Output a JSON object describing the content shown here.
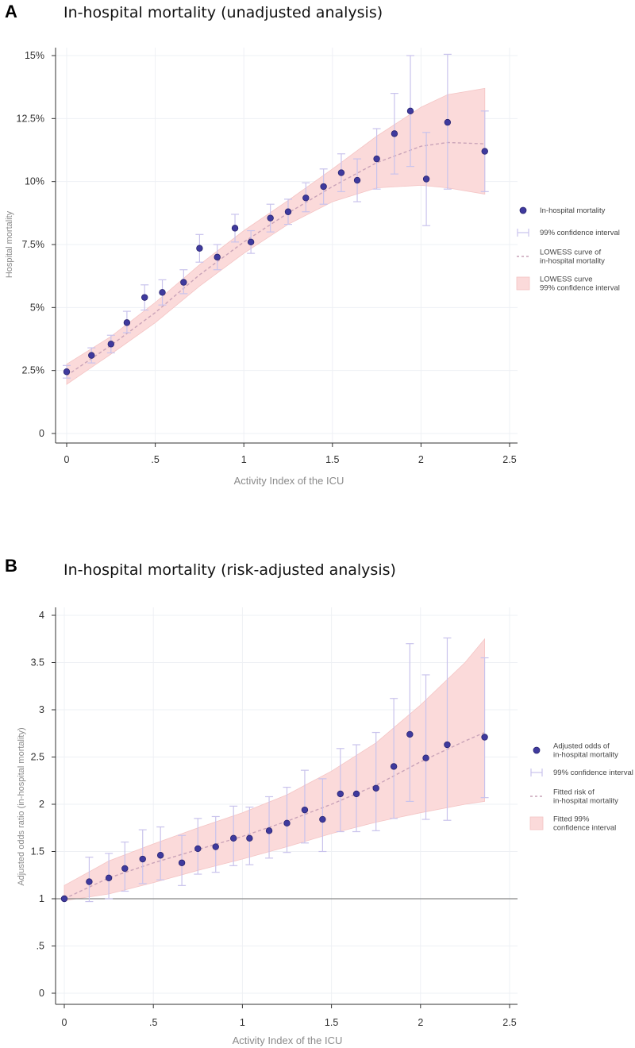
{
  "chart_data": [
    {
      "panel": "A",
      "type": "scatter",
      "title": "In-hospital mortality (unadjusted analysis)",
      "xlabel": "Activity Index of the ICU",
      "ylabel": "Hospital mortality",
      "xlim": [
        0,
        2.5
      ],
      "ylim": [
        0,
        15
      ],
      "xticks": [
        0,
        0.5,
        1,
        1.5,
        2,
        2.5
      ],
      "xtick_labels": [
        "0",
        ".5",
        "1",
        "1.5",
        "2",
        "2.5"
      ],
      "yticks": [
        0,
        2.5,
        5,
        7.5,
        10,
        12.5,
        15
      ],
      "ytick_labels": [
        "0",
        "2.5%",
        "5%",
        "7.5%",
        "10%",
        "12.5%",
        "15%"
      ],
      "reference_line": null,
      "points": [
        {
          "x": 0.0,
          "y": 2.45,
          "lo": 2.2,
          "hi": 2.7
        },
        {
          "x": 0.14,
          "y": 3.1,
          "lo": 2.8,
          "hi": 3.4
        },
        {
          "x": 0.25,
          "y": 3.55,
          "lo": 3.2,
          "hi": 3.9
        },
        {
          "x": 0.34,
          "y": 4.4,
          "lo": 4.0,
          "hi": 4.85
        },
        {
          "x": 0.44,
          "y": 5.4,
          "lo": 4.9,
          "hi": 5.9
        },
        {
          "x": 0.54,
          "y": 5.6,
          "lo": 5.1,
          "hi": 6.1
        },
        {
          "x": 0.66,
          "y": 6.0,
          "lo": 5.55,
          "hi": 6.5
        },
        {
          "x": 0.75,
          "y": 7.35,
          "lo": 6.8,
          "hi": 7.9
        },
        {
          "x": 0.85,
          "y": 7.0,
          "lo": 6.5,
          "hi": 7.5
        },
        {
          "x": 0.95,
          "y": 8.15,
          "lo": 7.6,
          "hi": 8.7
        },
        {
          "x": 1.04,
          "y": 7.6,
          "lo": 7.15,
          "hi": 8.05
        },
        {
          "x": 1.15,
          "y": 8.55,
          "lo": 8.0,
          "hi": 9.1
        },
        {
          "x": 1.25,
          "y": 8.8,
          "lo": 8.3,
          "hi": 9.3
        },
        {
          "x": 1.35,
          "y": 9.35,
          "lo": 8.8,
          "hi": 9.95
        },
        {
          "x": 1.45,
          "y": 9.8,
          "lo": 9.1,
          "hi": 10.5
        },
        {
          "x": 1.55,
          "y": 10.35,
          "lo": 9.6,
          "hi": 11.1
        },
        {
          "x": 1.64,
          "y": 10.05,
          "lo": 9.2,
          "hi": 10.9
        },
        {
          "x": 1.75,
          "y": 10.9,
          "lo": 9.7,
          "hi": 12.1
        },
        {
          "x": 1.85,
          "y": 11.9,
          "lo": 10.3,
          "hi": 13.5
        },
        {
          "x": 1.94,
          "y": 12.8,
          "lo": 10.6,
          "hi": 15.0
        },
        {
          "x": 2.03,
          "y": 10.1,
          "lo": 8.25,
          "hi": 11.95
        },
        {
          "x": 2.15,
          "y": 12.35,
          "lo": 9.7,
          "hi": 15.05
        },
        {
          "x": 2.36,
          "y": 11.2,
          "lo": 9.6,
          "hi": 12.8
        }
      ],
      "fit": {
        "x": [
          0,
          0.25,
          0.5,
          0.75,
          1.0,
          1.25,
          1.5,
          1.75,
          2.0,
          2.15,
          2.36
        ],
        "y": [
          2.3,
          3.5,
          4.8,
          6.3,
          7.6,
          8.75,
          9.8,
          10.75,
          11.4,
          11.55,
          11.5
        ],
        "lo": [
          1.95,
          3.15,
          4.4,
          5.85,
          7.15,
          8.3,
          9.2,
          9.75,
          9.85,
          9.75,
          9.5
        ],
        "hi": [
          2.75,
          3.85,
          5.2,
          6.7,
          8.05,
          9.25,
          10.5,
          11.8,
          12.95,
          13.45,
          13.7
        ]
      },
      "legend": [
        {
          "kind": "point",
          "lines": [
            "In-hospital mortality"
          ]
        },
        {
          "kind": "ci",
          "lines": [
            "99% confidence interval"
          ]
        },
        {
          "kind": "line",
          "lines": [
            "LOWESS curve of",
            "in-hospital mortality"
          ]
        },
        {
          "kind": "band",
          "lines": [
            "LOWESS curve",
            "99% confidence interval"
          ]
        }
      ]
    },
    {
      "panel": "B",
      "type": "scatter",
      "title": "In-hospital mortality (risk-adjusted analysis)",
      "xlabel": "Activity Index of the ICU",
      "ylabel": "Adjusted odds ratio (in-hospital mortality)",
      "xlim": [
        0,
        2.5
      ],
      "ylim": [
        0,
        4
      ],
      "xticks": [
        0,
        0.5,
        1,
        1.5,
        2,
        2.5
      ],
      "xtick_labels": [
        "0",
        ".5",
        "1",
        "1.5",
        "2",
        "2.5"
      ],
      "yticks": [
        0,
        0.5,
        1,
        1.5,
        2,
        2.5,
        3,
        3.5,
        4
      ],
      "ytick_labels": [
        "0",
        ".5",
        "1",
        "1.5",
        "2",
        "2.5",
        "3",
        "3.5",
        "4"
      ],
      "reference_line": 1,
      "points": [
        {
          "x": 0.0,
          "y": 1.0,
          "lo": 1.0,
          "hi": 1.0
        },
        {
          "x": 0.14,
          "y": 1.18,
          "lo": 0.97,
          "hi": 1.44
        },
        {
          "x": 0.25,
          "y": 1.22,
          "lo": 1.0,
          "hi": 1.48
        },
        {
          "x": 0.34,
          "y": 1.32,
          "lo": 1.08,
          "hi": 1.6
        },
        {
          "x": 0.44,
          "y": 1.42,
          "lo": 1.16,
          "hi": 1.73
        },
        {
          "x": 0.54,
          "y": 1.46,
          "lo": 1.2,
          "hi": 1.76
        },
        {
          "x": 0.66,
          "y": 1.38,
          "lo": 1.14,
          "hi": 1.67
        },
        {
          "x": 0.75,
          "y": 1.53,
          "lo": 1.26,
          "hi": 1.85
        },
        {
          "x": 0.85,
          "y": 1.55,
          "lo": 1.28,
          "hi": 1.87
        },
        {
          "x": 0.95,
          "y": 1.64,
          "lo": 1.35,
          "hi": 1.98
        },
        {
          "x": 1.04,
          "y": 1.64,
          "lo": 1.36,
          "hi": 1.97
        },
        {
          "x": 1.15,
          "y": 1.72,
          "lo": 1.43,
          "hi": 2.08
        },
        {
          "x": 1.25,
          "y": 1.8,
          "lo": 1.49,
          "hi": 2.18
        },
        {
          "x": 1.35,
          "y": 1.94,
          "lo": 1.59,
          "hi": 2.36
        },
        {
          "x": 1.45,
          "y": 1.84,
          "lo": 1.5,
          "hi": 2.27
        },
        {
          "x": 1.55,
          "y": 2.11,
          "lo": 1.71,
          "hi": 2.59
        },
        {
          "x": 1.64,
          "y": 2.11,
          "lo": 1.71,
          "hi": 2.63
        },
        {
          "x": 1.75,
          "y": 2.17,
          "lo": 1.72,
          "hi": 2.76
        },
        {
          "x": 1.85,
          "y": 2.4,
          "lo": 1.85,
          "hi": 3.12
        },
        {
          "x": 1.94,
          "y": 2.74,
          "lo": 2.03,
          "hi": 3.7
        },
        {
          "x": 2.03,
          "y": 2.49,
          "lo": 1.84,
          "hi": 3.37
        },
        {
          "x": 2.15,
          "y": 2.63,
          "lo": 1.83,
          "hi": 3.76
        },
        {
          "x": 2.36,
          "y": 2.71,
          "lo": 2.07,
          "hi": 3.55
        }
      ],
      "fit": {
        "x": [
          0,
          0.25,
          0.5,
          0.75,
          1.0,
          1.25,
          1.5,
          1.75,
          2.0,
          2.25,
          2.36
        ],
        "y": [
          1.0,
          1.22,
          1.38,
          1.52,
          1.66,
          1.82,
          2.0,
          2.2,
          2.45,
          2.67,
          2.76
        ],
        "lo": [
          0.98,
          1.05,
          1.17,
          1.3,
          1.42,
          1.55,
          1.69,
          1.81,
          1.91,
          2.0,
          2.03
        ],
        "hi": [
          1.14,
          1.4,
          1.58,
          1.75,
          1.91,
          2.1,
          2.35,
          2.65,
          3.05,
          3.5,
          3.75
        ]
      },
      "legend": [
        {
          "kind": "point",
          "lines": [
            "Adjusted odds of",
            "in-hospital mortality"
          ]
        },
        {
          "kind": "ci",
          "lines": [
            "99% confidence interval"
          ]
        },
        {
          "kind": "line",
          "lines": [
            "Fitted risk of",
            "in-hospital mortality"
          ]
        },
        {
          "kind": "band",
          "lines": [
            "Fitted 99%",
            "confidence interval"
          ]
        }
      ]
    }
  ],
  "colors": {
    "point": "#3f3a9e",
    "point_edge": "#2a2570",
    "ci": "#c9c3ec",
    "fit_line": "#c9a3b8",
    "band": "#fbdada",
    "band_edge": "#f4c4c4",
    "grid": "#eef0f4",
    "axis": "#333333",
    "reference": "#888888"
  }
}
